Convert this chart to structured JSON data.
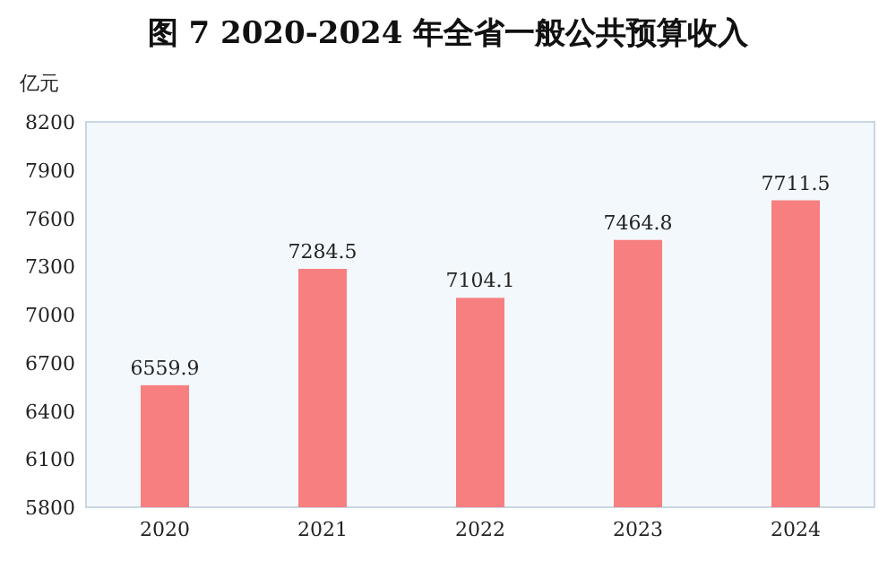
{
  "chart_data": {
    "type": "bar",
    "title": "图 7 2020-2024 年全省一般公共预算收入",
    "ylabel": "亿元",
    "categories": [
      "2020",
      "2021",
      "2022",
      "2023",
      "2024"
    ],
    "values": [
      6559.9,
      7284.5,
      7104.1,
      7464.8,
      7711.5
    ],
    "color": "#f77f80",
    "ylim": [
      5800,
      8200
    ],
    "yticks": [
      5800,
      6100,
      6400,
      6700,
      7000,
      7300,
      7600,
      7900,
      8200
    ],
    "data_labels": true,
    "grid": false
  }
}
